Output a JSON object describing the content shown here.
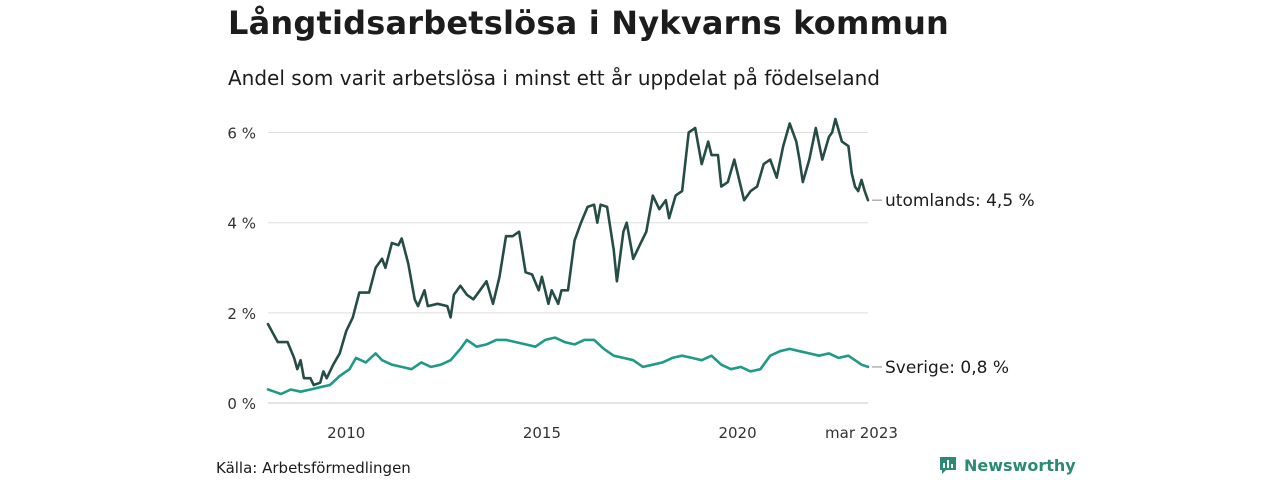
{
  "title": "Långtidsarbetslösa i Nykvarns kommun",
  "subtitle": "Andel som varit arbetslösa i minst ett år uppdelat på födelseland",
  "source": "Källa: Arbetsförmedlingen",
  "brand": "Newsworthy",
  "colors": {
    "utomlands": "#264d45",
    "sverige": "#1f9a86",
    "grid": "#dddddd",
    "axis": "#c8c8c8"
  },
  "chart_data": {
    "type": "line",
    "x_range": [
      "2008-01",
      "2023-03"
    ],
    "ylim": [
      0,
      6.5
    ],
    "y_ticks": [
      0,
      2,
      4,
      6
    ],
    "y_tick_labels": [
      "0 %",
      "2 %",
      "4 %",
      "6 %"
    ],
    "x_ticks": [
      "2010-01",
      "2015-01",
      "2020-01",
      "2023-03"
    ],
    "x_tick_labels": [
      "2010",
      "2015",
      "2020",
      "mar 2023"
    ],
    "grid": "horizontal",
    "series": [
      {
        "key": "utomlands",
        "end_label": "utomlands: 4,5 %",
        "points": [
          [
            "2008-01",
            1.75
          ],
          [
            "2008-04",
            1.35
          ],
          [
            "2008-07",
            1.35
          ],
          [
            "2008-09",
            1.0
          ],
          [
            "2008-10",
            0.75
          ],
          [
            "2008-11",
            0.95
          ],
          [
            "2008-12",
            0.55
          ],
          [
            "2009-02",
            0.55
          ],
          [
            "2009-03",
            0.4
          ],
          [
            "2009-05",
            0.45
          ],
          [
            "2009-06",
            0.7
          ],
          [
            "2009-07",
            0.55
          ],
          [
            "2009-09",
            0.85
          ],
          [
            "2009-11",
            1.1
          ],
          [
            "2010-01",
            1.6
          ],
          [
            "2010-03",
            1.9
          ],
          [
            "2010-05",
            2.45
          ],
          [
            "2010-08",
            2.45
          ],
          [
            "2010-10",
            3.0
          ],
          [
            "2010-12",
            3.2
          ],
          [
            "2011-01",
            3.0
          ],
          [
            "2011-03",
            3.55
          ],
          [
            "2011-05",
            3.5
          ],
          [
            "2011-06",
            3.65
          ],
          [
            "2011-08",
            3.1
          ],
          [
            "2011-10",
            2.3
          ],
          [
            "2011-11",
            2.15
          ],
          [
            "2012-01",
            2.5
          ],
          [
            "2012-02",
            2.15
          ],
          [
            "2012-05",
            2.2
          ],
          [
            "2012-08",
            2.15
          ],
          [
            "2012-09",
            1.9
          ],
          [
            "2012-10",
            2.4
          ],
          [
            "2012-12",
            2.6
          ],
          [
            "2013-02",
            2.4
          ],
          [
            "2013-04",
            2.3
          ],
          [
            "2013-06",
            2.5
          ],
          [
            "2013-08",
            2.7
          ],
          [
            "2013-10",
            2.2
          ],
          [
            "2013-12",
            2.8
          ],
          [
            "2014-02",
            3.7
          ],
          [
            "2014-04",
            3.7
          ],
          [
            "2014-06",
            3.8
          ],
          [
            "2014-08",
            2.9
          ],
          [
            "2014-10",
            2.85
          ],
          [
            "2014-12",
            2.5
          ],
          [
            "2015-01",
            2.8
          ],
          [
            "2015-03",
            2.2
          ],
          [
            "2015-04",
            2.5
          ],
          [
            "2015-06",
            2.2
          ],
          [
            "2015-07",
            2.5
          ],
          [
            "2015-09",
            2.5
          ],
          [
            "2015-11",
            3.6
          ],
          [
            "2016-01",
            4.0
          ],
          [
            "2016-03",
            4.35
          ],
          [
            "2016-05",
            4.4
          ],
          [
            "2016-06",
            4.0
          ],
          [
            "2016-07",
            4.4
          ],
          [
            "2016-09",
            4.35
          ],
          [
            "2016-11",
            3.4
          ],
          [
            "2016-12",
            2.7
          ],
          [
            "2017-02",
            3.8
          ],
          [
            "2017-03",
            4.0
          ],
          [
            "2017-05",
            3.2
          ],
          [
            "2017-07",
            3.5
          ],
          [
            "2017-09",
            3.8
          ],
          [
            "2017-11",
            4.6
          ],
          [
            "2018-01",
            4.3
          ],
          [
            "2018-03",
            4.5
          ],
          [
            "2018-04",
            4.1
          ],
          [
            "2018-06",
            4.6
          ],
          [
            "2018-08",
            4.7
          ],
          [
            "2018-10",
            6.0
          ],
          [
            "2018-12",
            6.1
          ],
          [
            "2019-02",
            5.3
          ],
          [
            "2019-04",
            5.8
          ],
          [
            "2019-05",
            5.5
          ],
          [
            "2019-07",
            5.5
          ],
          [
            "2019-08",
            4.8
          ],
          [
            "2019-10",
            4.9
          ],
          [
            "2019-12",
            5.4
          ],
          [
            "2020-03",
            4.5
          ],
          [
            "2020-05",
            4.7
          ],
          [
            "2020-07",
            4.8
          ],
          [
            "2020-09",
            5.3
          ],
          [
            "2020-11",
            5.4
          ],
          [
            "2021-01",
            5.0
          ],
          [
            "2021-03",
            5.7
          ],
          [
            "2021-05",
            6.2
          ],
          [
            "2021-07",
            5.8
          ],
          [
            "2021-08",
            5.4
          ],
          [
            "2021-09",
            4.9
          ],
          [
            "2021-11",
            5.4
          ],
          [
            "2022-01",
            6.1
          ],
          [
            "2022-03",
            5.4
          ],
          [
            "2022-05",
            5.9
          ],
          [
            "2022-06",
            6.0
          ],
          [
            "2022-07",
            6.3
          ],
          [
            "2022-09",
            5.8
          ],
          [
            "2022-11",
            5.7
          ],
          [
            "2022-12",
            5.1
          ],
          [
            "2023-01",
            4.8
          ],
          [
            "2023-02",
            4.7
          ],
          [
            "2023-03",
            4.95
          ],
          [
            "2023-04",
            4.7
          ],
          [
            "2023-05",
            4.5
          ]
        ]
      },
      {
        "key": "sverige",
        "end_label": "Sverige: 0,8 %",
        "points": [
          [
            "2008-01",
            0.3
          ],
          [
            "2008-03",
            0.25
          ],
          [
            "2008-05",
            0.2
          ],
          [
            "2008-08",
            0.3
          ],
          [
            "2008-11",
            0.25
          ],
          [
            "2009-02",
            0.3
          ],
          [
            "2009-05",
            0.35
          ],
          [
            "2009-08",
            0.4
          ],
          [
            "2009-11",
            0.6
          ],
          [
            "2010-02",
            0.75
          ],
          [
            "2010-04",
            1.0
          ],
          [
            "2010-07",
            0.9
          ],
          [
            "2010-10",
            1.1
          ],
          [
            "2010-12",
            0.95
          ],
          [
            "2011-03",
            0.85
          ],
          [
            "2011-06",
            0.8
          ],
          [
            "2011-09",
            0.75
          ],
          [
            "2011-12",
            0.9
          ],
          [
            "2012-03",
            0.8
          ],
          [
            "2012-06",
            0.85
          ],
          [
            "2012-09",
            0.95
          ],
          [
            "2012-12",
            1.2
          ],
          [
            "2013-02",
            1.4
          ],
          [
            "2013-05",
            1.25
          ],
          [
            "2013-08",
            1.3
          ],
          [
            "2013-11",
            1.4
          ],
          [
            "2014-02",
            1.4
          ],
          [
            "2014-05",
            1.35
          ],
          [
            "2014-08",
            1.3
          ],
          [
            "2014-11",
            1.25
          ],
          [
            "2015-02",
            1.4
          ],
          [
            "2015-05",
            1.45
          ],
          [
            "2015-08",
            1.35
          ],
          [
            "2015-11",
            1.3
          ],
          [
            "2016-02",
            1.4
          ],
          [
            "2016-05",
            1.4
          ],
          [
            "2016-08",
            1.2
          ],
          [
            "2016-11",
            1.05
          ],
          [
            "2017-02",
            1.0
          ],
          [
            "2017-05",
            0.95
          ],
          [
            "2017-08",
            0.8
          ],
          [
            "2017-11",
            0.85
          ],
          [
            "2018-02",
            0.9
          ],
          [
            "2018-05",
            1.0
          ],
          [
            "2018-08",
            1.05
          ],
          [
            "2018-11",
            1.0
          ],
          [
            "2019-02",
            0.95
          ],
          [
            "2019-05",
            1.05
          ],
          [
            "2019-08",
            0.85
          ],
          [
            "2019-11",
            0.75
          ],
          [
            "2020-02",
            0.8
          ],
          [
            "2020-05",
            0.7
          ],
          [
            "2020-08",
            0.75
          ],
          [
            "2020-11",
            1.05
          ],
          [
            "2021-02",
            1.15
          ],
          [
            "2021-05",
            1.2
          ],
          [
            "2021-08",
            1.15
          ],
          [
            "2021-11",
            1.1
          ],
          [
            "2022-02",
            1.05
          ],
          [
            "2022-05",
            1.1
          ],
          [
            "2022-08",
            1.0
          ],
          [
            "2022-11",
            1.05
          ],
          [
            "2023-01",
            0.95
          ],
          [
            "2023-03",
            0.85
          ],
          [
            "2023-05",
            0.8
          ]
        ]
      }
    ]
  }
}
